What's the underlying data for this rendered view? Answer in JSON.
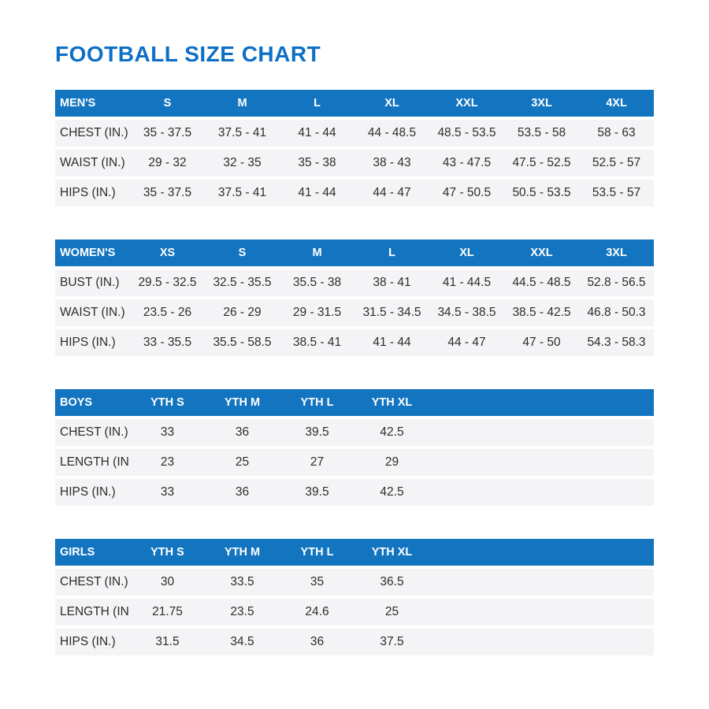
{
  "page": {
    "title": "FOOTBALL SIZE CHART"
  },
  "colors": {
    "title_blue": "#0d6fc5",
    "header_bg": "#1375c0",
    "header_text": "#ffffff",
    "row_bg": "#f4f4f6",
    "row_text": "#2d2d2d"
  },
  "tables": [
    {
      "name": "mens",
      "header": [
        "MEN'S",
        "S",
        "M",
        "L",
        "XL",
        "XXL",
        "3XL",
        "4XL"
      ],
      "rows": [
        [
          "CHEST (IN.)",
          "35 - 37.5",
          "37.5 - 41",
          "41 - 44",
          "44 - 48.5",
          "48.5 - 53.5",
          "53.5 - 58",
          "58 - 63"
        ],
        [
          "WAIST (IN.)",
          "29 - 32",
          "32 - 35",
          "35 - 38",
          "38 - 43",
          "43 - 47.5",
          "47.5 - 52.5",
          "52.5 - 57"
        ],
        [
          "HIPS (IN.)",
          "35 - 37.5",
          "37.5 - 41",
          "41 - 44",
          "44 - 47",
          "47 - 50.5",
          "50.5 - 53.5",
          "53.5 - 57"
        ]
      ]
    },
    {
      "name": "womens",
      "header": [
        "WOMEN'S",
        "XS",
        "S",
        "M",
        "L",
        "XL",
        "XXL",
        "3XL"
      ],
      "rows": [
        [
          "BUST (IN.)",
          "29.5 - 32.5",
          "32.5 - 35.5",
          "35.5 - 38",
          "38 - 41",
          "41 - 44.5",
          "44.5 - 48.5",
          "52.8 - 56.5"
        ],
        [
          "WAIST (IN.)",
          "23.5 - 26",
          "26 - 29",
          "29 - 31.5",
          "31.5 - 34.5",
          "34.5 - 38.5",
          "38.5 - 42.5",
          "46.8 - 50.3"
        ],
        [
          "HIPS (IN.)",
          "33 - 35.5",
          "35.5 - 58.5",
          "38.5 - 41",
          "41 - 44",
          "44 - 47",
          "47 - 50",
          "54.3 - 58.3"
        ]
      ]
    },
    {
      "name": "boys",
      "header": [
        "BOYS",
        "YTH S",
        "YTH M",
        "YTH L",
        "YTH XL"
      ],
      "rows": [
        [
          "CHEST (IN.)",
          "33",
          "36",
          "39.5",
          "42.5"
        ],
        [
          "LENGTH (IN.)",
          "23",
          "25",
          "27",
          "29"
        ],
        [
          "HIPS (IN.)",
          "33",
          "36",
          "39.5",
          "42.5"
        ]
      ]
    },
    {
      "name": "girls",
      "header": [
        "GIRLS",
        "YTH S",
        "YTH M",
        "YTH L",
        "YTH XL"
      ],
      "rows": [
        [
          "CHEST (IN.)",
          "30",
          "33.5",
          "35",
          "36.5"
        ],
        [
          "LENGTH (IN.)",
          "21.75",
          "23.5",
          "24.6",
          "25"
        ],
        [
          "HIPS (IN.)",
          "31.5",
          "34.5",
          "36",
          "37.5"
        ]
      ]
    }
  ]
}
